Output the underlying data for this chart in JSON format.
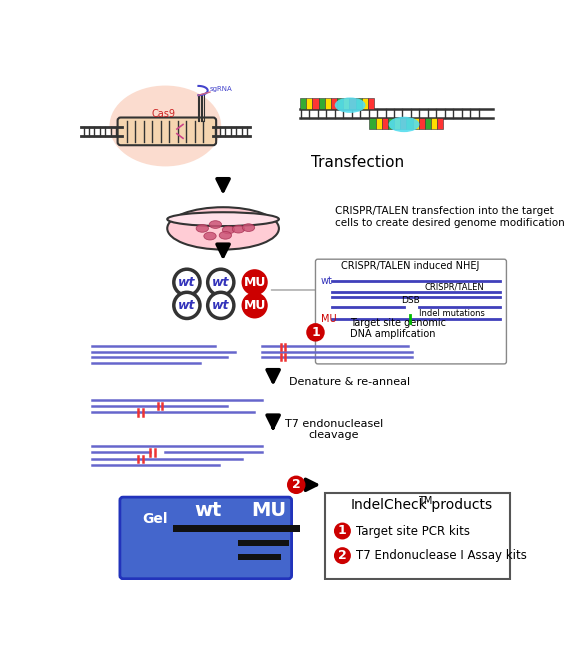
{
  "bg_color": "#ffffff",
  "dna_line_color": "#6666cc",
  "dna_line_color2": "#4040bb",
  "cell_dish_fill": "#ffb6c1",
  "gel_bg": "#4466cc",
  "gel_text_color": "#ffffff",
  "transfection_text": "Transfection",
  "crispr_text": "CRISPR/TALEN transfection into the target\ncells to create desired genome modification",
  "step1_text": "Target site genomic\nDNA amplifcation",
  "step2_text": "Denature & re-anneal",
  "step3_text": "T7 endonucleasel\ncleavage",
  "nhej_title": "CRISPR/TALEN induced NHEJ",
  "legend_item1": "Target site PCR kits",
  "legend_item2": "T7 Endonuclease I Assay kits",
  "talen_colors": [
    "#33aa33",
    "#ffdd00",
    "#ff3333",
    "#33aa33",
    "#ffdd00",
    "#ff3333",
    "#33aa33",
    "#ffdd00",
    "#ff3333",
    "#33aa33",
    "#ffdd00",
    "#ff3333",
    "#33aa33",
    "#ffdd00",
    "#ff3333"
  ]
}
